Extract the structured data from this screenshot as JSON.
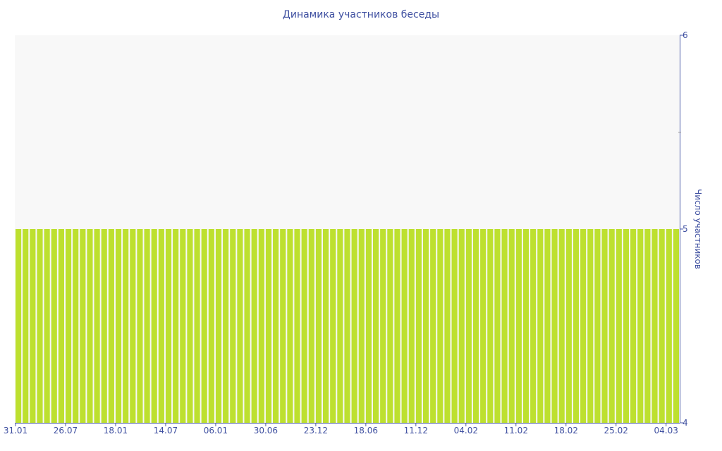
{
  "chart_data": {
    "type": "bar",
    "title": "Динамика участников беседы",
    "ylabel": "Число участников",
    "xlabel": "",
    "ylim": [
      4,
      6
    ],
    "yticks": [
      4,
      5,
      6
    ],
    "y_axis_side": "right",
    "grid": false,
    "legend": "none",
    "x_tick_labels": [
      "31.01",
      "26.07",
      "18.01",
      "14.07",
      "06.01",
      "30.06",
      "23.12",
      "18.06",
      "11.12",
      "04.02",
      "11.02",
      "18.02",
      "25.02",
      "04.03"
    ],
    "x_tick_every": 7,
    "values": [
      5,
      5,
      5,
      5,
      5,
      5,
      5,
      5,
      5,
      5,
      5,
      5,
      5,
      5,
      5,
      5,
      5,
      5,
      5,
      5,
      5,
      5,
      5,
      5,
      5,
      5,
      5,
      5,
      5,
      5,
      5,
      5,
      5,
      5,
      5,
      5,
      5,
      5,
      5,
      5,
      5,
      5,
      5,
      5,
      5,
      5,
      5,
      5,
      5,
      5,
      5,
      5,
      5,
      5,
      5,
      5,
      5,
      5,
      5,
      5,
      5,
      5,
      5,
      5,
      5,
      5,
      5,
      5,
      5,
      5,
      5,
      5,
      5,
      5,
      5,
      5,
      5,
      5,
      5,
      5,
      5,
      5,
      5,
      5,
      5,
      5,
      5,
      5,
      5,
      5,
      5,
      5,
      5
    ],
    "colors": {
      "bar": "#bde02f",
      "plot_background": "#f8f8f8",
      "axis": "#4a5aa8",
      "text": "#3e4fa0"
    }
  }
}
